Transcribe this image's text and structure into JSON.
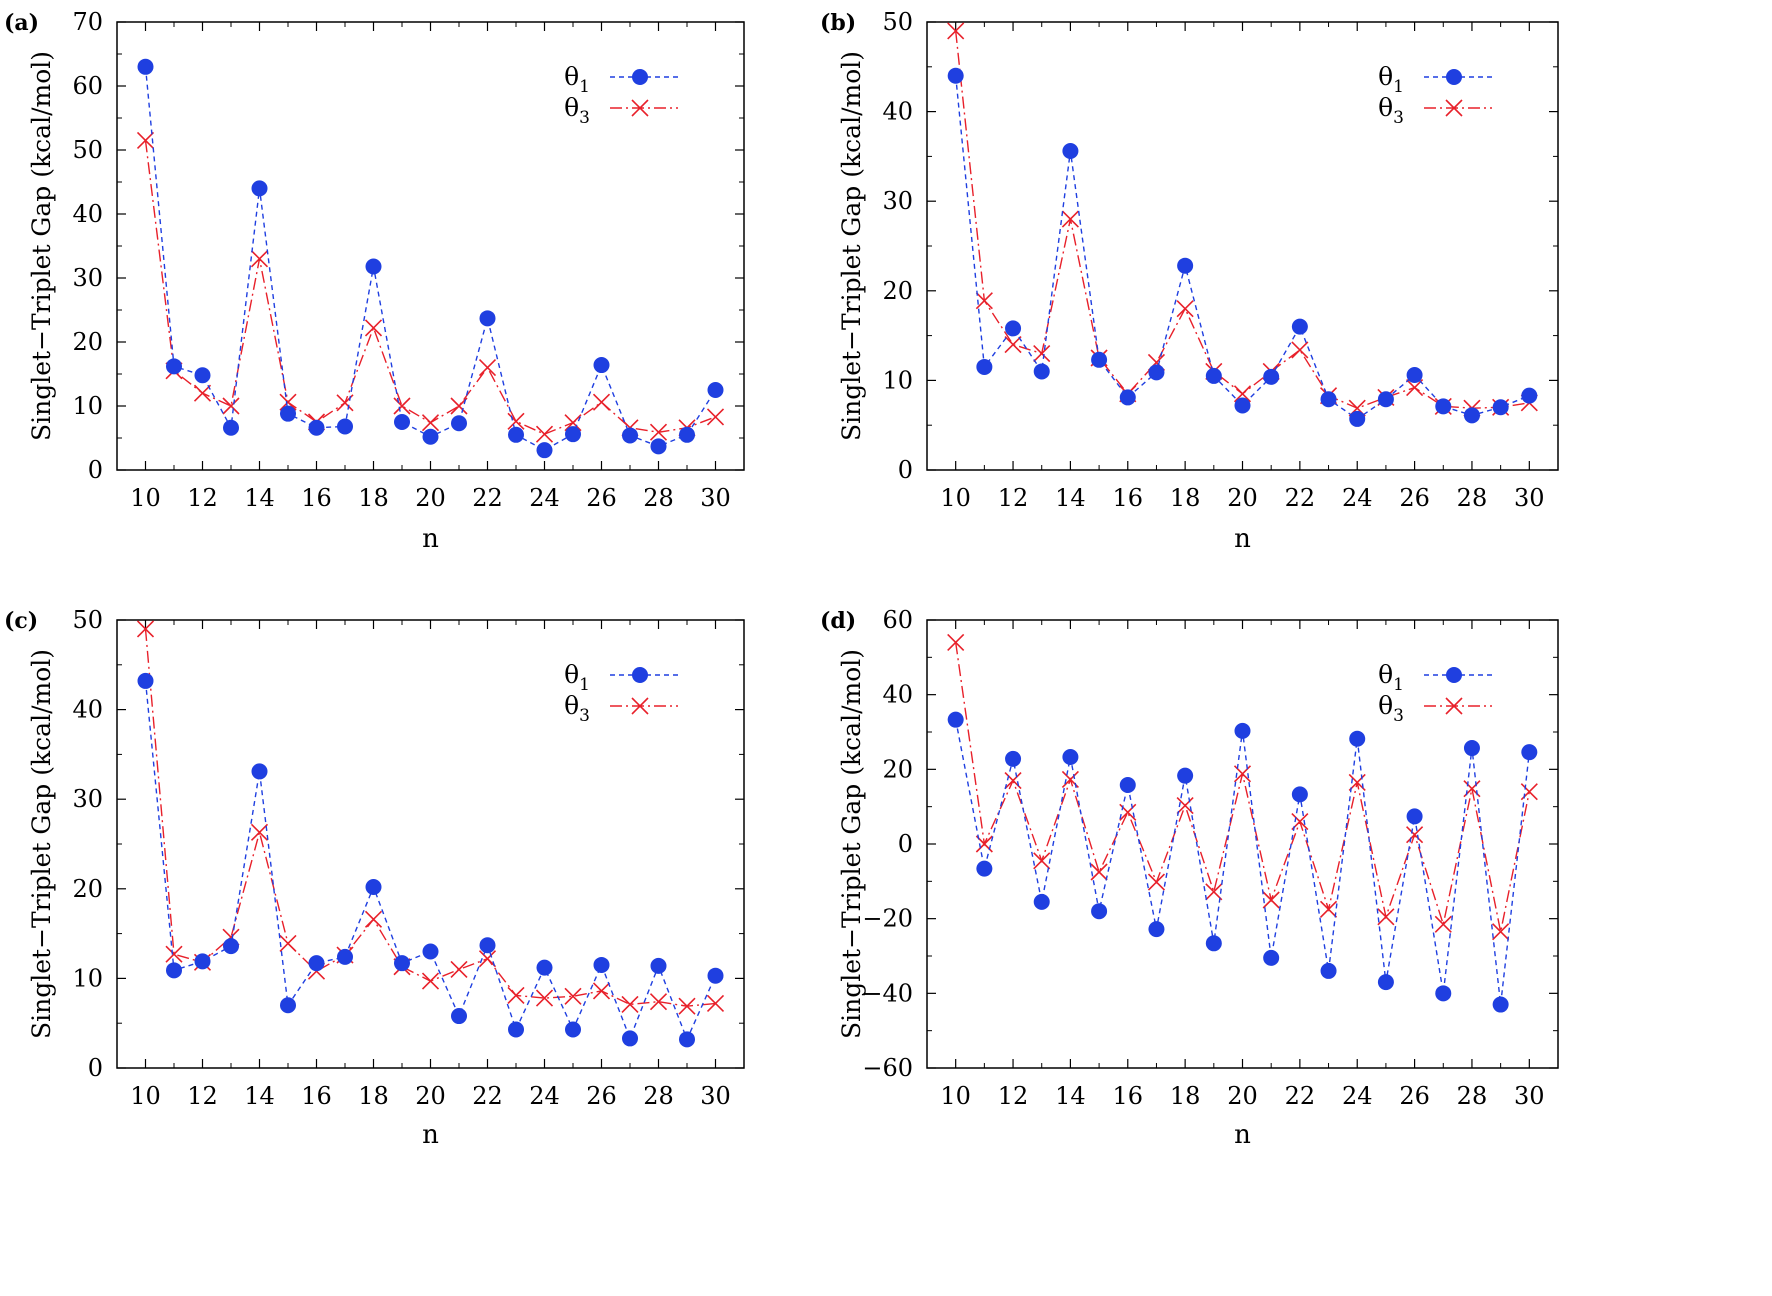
{
  "chart_data": [
    {
      "type": "line",
      "panel_label": "(a)",
      "xlabel": "n",
      "ylabel": "Singlet−Triplet Gap (kcal/mol)",
      "xlim": [
        9,
        31
      ],
      "ylim": [
        0,
        70
      ],
      "xticks": [
        10,
        12,
        14,
        16,
        18,
        20,
        22,
        24,
        26,
        28,
        30
      ],
      "yticks": [
        0,
        10,
        20,
        30,
        40,
        50,
        60,
        70
      ],
      "legend_position": "top-right",
      "x": [
        10,
        11,
        12,
        13,
        14,
        15,
        16,
        17,
        18,
        19,
        20,
        21,
        22,
        23,
        24,
        25,
        26,
        27,
        28,
        29,
        30
      ],
      "series": [
        {
          "name": "θ1",
          "marker": "circle",
          "color": "#1f3fe0",
          "values": [
            63,
            16.2,
            14.8,
            6.6,
            44,
            8.8,
            6.6,
            6.8,
            31.8,
            7.5,
            5.2,
            7.3,
            23.7,
            5.5,
            3.1,
            5.6,
            16.4,
            5.4,
            3.7,
            5.5,
            12.5
          ]
        },
        {
          "name": "θ3",
          "marker": "cross",
          "color": "#e8202a",
          "values": [
            51.5,
            15.5,
            12,
            10,
            33,
            10.6,
            7.5,
            10.5,
            22.2,
            10,
            7.4,
            10,
            16,
            7.6,
            5.6,
            7.4,
            10.6,
            6.6,
            5.9,
            6.6,
            8.3
          ]
        }
      ]
    },
    {
      "type": "line",
      "panel_label": "(b)",
      "xlabel": "n",
      "ylabel": "Singlet−Triplet Gap (kcal/mol)",
      "xlim": [
        9,
        31
      ],
      "ylim": [
        0,
        50
      ],
      "xticks": [
        10,
        12,
        14,
        16,
        18,
        20,
        22,
        24,
        26,
        28,
        30
      ],
      "yticks": [
        0,
        10,
        20,
        30,
        40,
        50
      ],
      "legend_position": "top-right",
      "x": [
        10,
        11,
        12,
        13,
        14,
        15,
        16,
        17,
        18,
        19,
        20,
        21,
        22,
        23,
        24,
        25,
        26,
        27,
        28,
        29,
        30
      ],
      "series": [
        {
          "name": "θ1",
          "marker": "circle",
          "color": "#1f3fe0",
          "values": [
            44,
            11.5,
            15.8,
            11,
            35.6,
            12.3,
            8.1,
            10.9,
            22.8,
            10.5,
            7.2,
            10.4,
            16,
            7.9,
            5.7,
            7.9,
            10.6,
            7.1,
            6.1,
            7,
            8.3
          ]
        },
        {
          "name": "θ3",
          "marker": "cross",
          "color": "#e8202a",
          "values": [
            49,
            18.9,
            14,
            13,
            28,
            12.5,
            8.5,
            12,
            18,
            11,
            8.5,
            11,
            13.4,
            8.3,
            6.9,
            8.1,
            9.2,
            7.1,
            6.9,
            7,
            7.5
          ]
        }
      ]
    },
    {
      "type": "line",
      "panel_label": "(c)",
      "xlabel": "n",
      "ylabel": "Singlet−Triplet Gap (kcal/mol)",
      "xlim": [
        9,
        31
      ],
      "ylim": [
        0,
        50
      ],
      "xticks": [
        10,
        12,
        14,
        16,
        18,
        20,
        22,
        24,
        26,
        28,
        30
      ],
      "yticks": [
        0,
        10,
        20,
        30,
        40,
        50
      ],
      "legend_position": "top-right",
      "x": [
        10,
        11,
        12,
        13,
        14,
        15,
        16,
        17,
        18,
        19,
        20,
        21,
        22,
        23,
        24,
        25,
        26,
        27,
        28,
        29,
        30
      ],
      "series": [
        {
          "name": "θ1",
          "marker": "circle",
          "color": "#1f3fe0",
          "values": [
            43.2,
            10.9,
            11.9,
            13.6,
            33.1,
            7,
            11.7,
            12.4,
            20.2,
            11.7,
            13,
            5.8,
            13.7,
            4.3,
            11.2,
            4.3,
            11.5,
            3.3,
            11.4,
            3.2,
            10.3
          ]
        },
        {
          "name": "θ3",
          "marker": "cross",
          "color": "#e8202a",
          "values": [
            49,
            12.7,
            11.8,
            14.6,
            26.3,
            13.9,
            10.8,
            12.6,
            16.6,
            11.3,
            9.7,
            11,
            12.2,
            8.1,
            7.8,
            8,
            8.6,
            7.1,
            7.4,
            6.9,
            7.2
          ]
        }
      ]
    },
    {
      "type": "line",
      "panel_label": "(d)",
      "xlabel": "n",
      "ylabel": "Singlet−Triplet Gap (kcal/mol)",
      "xlim": [
        9,
        31
      ],
      "ylim": [
        -60,
        60
      ],
      "xticks": [
        10,
        12,
        14,
        16,
        18,
        20,
        22,
        24,
        26,
        28,
        30
      ],
      "yticks": [
        -60,
        -40,
        -20,
        0,
        20,
        40,
        60
      ],
      "legend_position": "top-right",
      "x": [
        10,
        11,
        12,
        13,
        14,
        15,
        16,
        17,
        18,
        19,
        20,
        21,
        22,
        23,
        24,
        25,
        26,
        27,
        28,
        29,
        30
      ],
      "series": [
        {
          "name": "θ1",
          "marker": "circle",
          "color": "#1f3fe0",
          "values": [
            33.3,
            -6.6,
            22.8,
            -15.5,
            23.3,
            -18,
            15.8,
            -22.8,
            18.3,
            -26.6,
            30.3,
            -30.5,
            13.3,
            -34,
            28.2,
            -37,
            7.4,
            -40,
            25.7,
            -43,
            24.6
          ]
        },
        {
          "name": "θ3",
          "marker": "cross",
          "color": "#e8202a",
          "values": [
            54,
            0,
            17,
            -4.5,
            17.3,
            -7.5,
            8.5,
            -10.2,
            10.3,
            -12.8,
            18.8,
            -15,
            6,
            -17.5,
            16.5,
            -19.5,
            2.5,
            -21.5,
            14.8,
            -23.5,
            14
          ]
        }
      ]
    }
  ]
}
